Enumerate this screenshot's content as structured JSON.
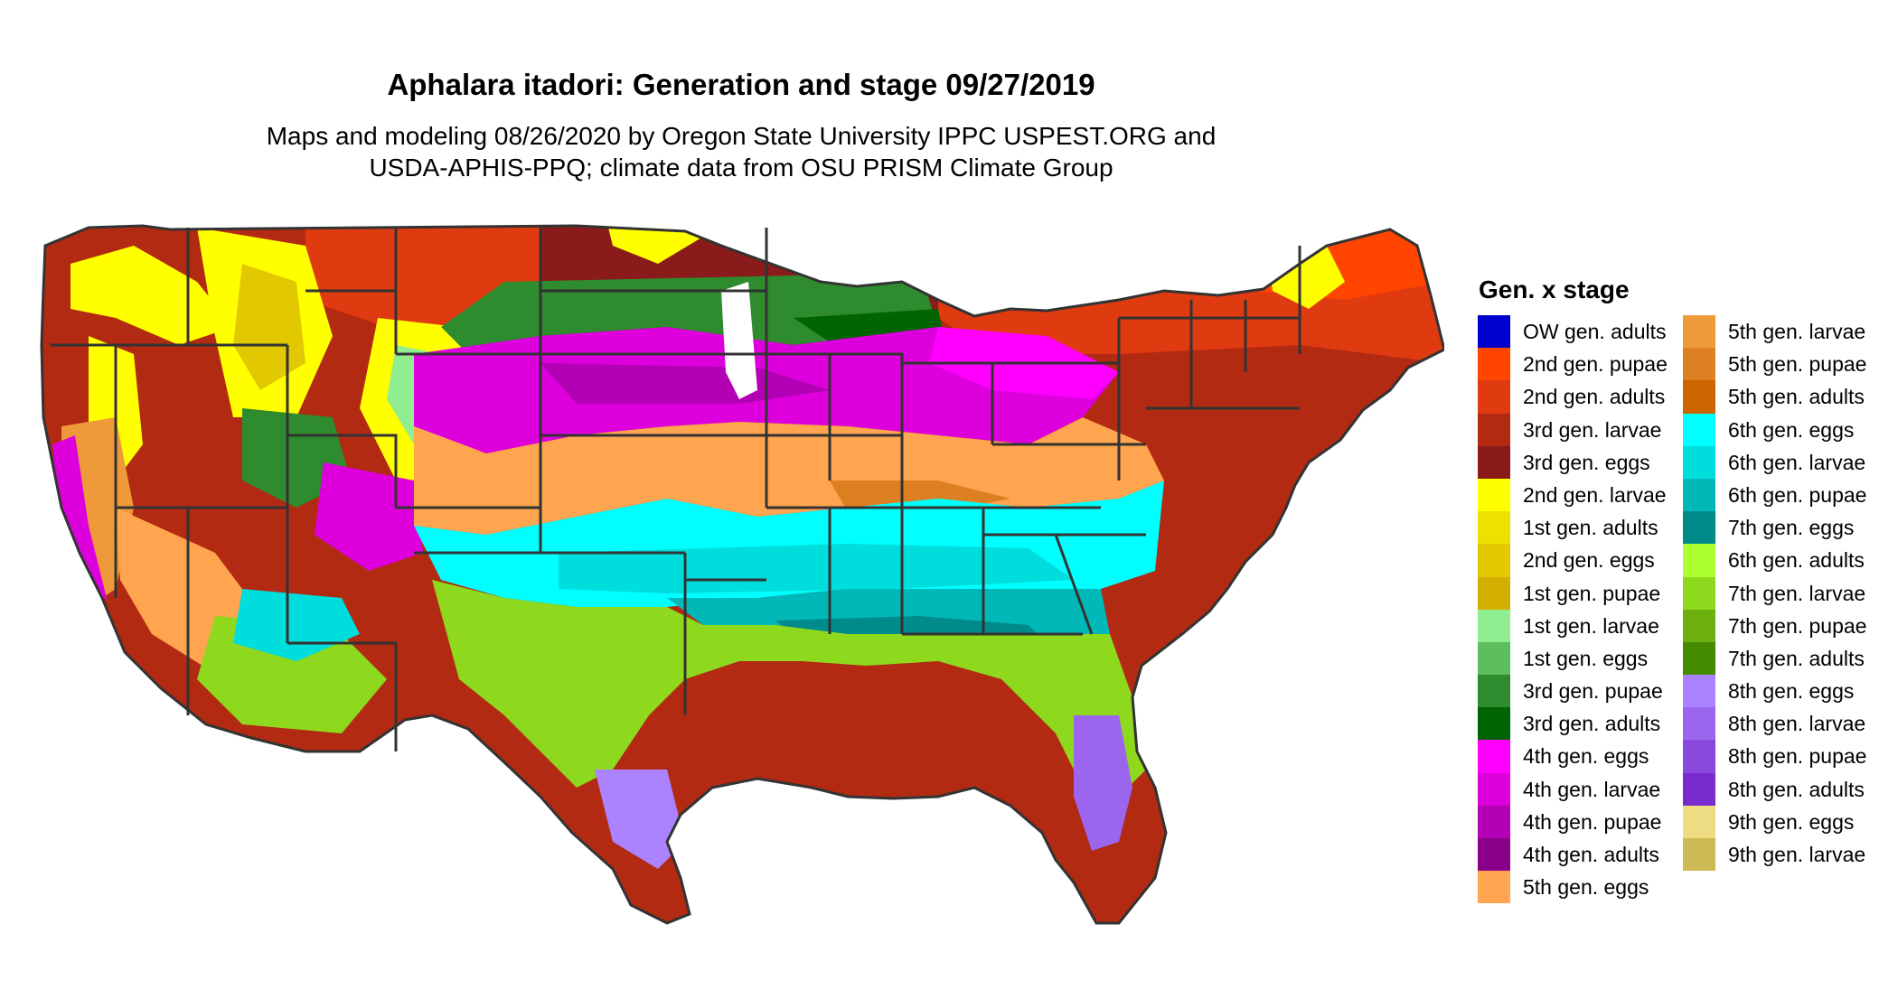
{
  "title": "Aphalara itadori: Generation and stage 09/27/2019",
  "subtitle_line1": "Maps and modeling 08/26/2020 by Oregon State University IPPC USPEST.ORG and",
  "subtitle_line2": "USDA-APHIS-PPQ; climate data from OSU PRISM Climate Group",
  "legend": {
    "title": "Gen. x stage",
    "items": [
      {
        "label": "OW gen. adults",
        "color": "#0000CD"
      },
      {
        "label": "2nd gen. pupae",
        "color": "#FF4500"
      },
      {
        "label": "2nd gen. adults",
        "color": "#E03A10"
      },
      {
        "label": "3rd gen. larvae",
        "color": "#B22A12"
      },
      {
        "label": "3rd gen. eggs",
        "color": "#8B1A1A"
      },
      {
        "label": "2nd gen. larvae",
        "color": "#FFFF00"
      },
      {
        "label": "1st gen. adults",
        "color": "#EEE000"
      },
      {
        "label": "2nd gen. eggs",
        "color": "#E2C800"
      },
      {
        "label": "1st gen. pupae",
        "color": "#D4AF00"
      },
      {
        "label": "1st gen. larvae",
        "color": "#90EE90"
      },
      {
        "label": "1st gen. eggs",
        "color": "#5CBF5C"
      },
      {
        "label": "3rd gen. pupae",
        "color": "#2E8B2E"
      },
      {
        "label": "3rd gen. adults",
        "color": "#006400"
      },
      {
        "label": "4th gen. eggs",
        "color": "#FF00FF"
      },
      {
        "label": "4th gen. larvae",
        "color": "#DD00DD"
      },
      {
        "label": "4th gen. pupae",
        "color": "#B400B4"
      },
      {
        "label": "4th gen. adults",
        "color": "#8B008B"
      },
      {
        "label": "5th gen. eggs",
        "color": "#FFA54F"
      },
      {
        "label": "5th gen. larvae",
        "color": "#EE9A3A"
      },
      {
        "label": "5th gen. pupae",
        "color": "#DD8022"
      },
      {
        "label": "5th gen. adults",
        "color": "#CD6600"
      },
      {
        "label": "6th gen. eggs",
        "color": "#00FFFF"
      },
      {
        "label": "6th gen. larvae",
        "color": "#00DDDD"
      },
      {
        "label": "6th gen. pupae",
        "color": "#00B8B8"
      },
      {
        "label": "7th gen. eggs",
        "color": "#008B8B"
      },
      {
        "label": "6th gen. adults",
        "color": "#ADFF2F"
      },
      {
        "label": "7th gen. larvae",
        "color": "#8ED81E"
      },
      {
        "label": "7th gen. pupae",
        "color": "#6CB010"
      },
      {
        "label": "7th gen. adults",
        "color": "#458B00"
      },
      {
        "label": "8th gen. eggs",
        "color": "#AB82FF"
      },
      {
        "label": "8th gen. larvae",
        "color": "#9B65EE"
      },
      {
        "label": "8th gen. pupae",
        "color": "#8A48DD"
      },
      {
        "label": "8th gen. adults",
        "color": "#7A2BCD"
      },
      {
        "label": "9th gen. eggs",
        "color": "#EEDC82"
      },
      {
        "label": "9th gen. larvae",
        "color": "#CDBA55"
      }
    ]
  }
}
